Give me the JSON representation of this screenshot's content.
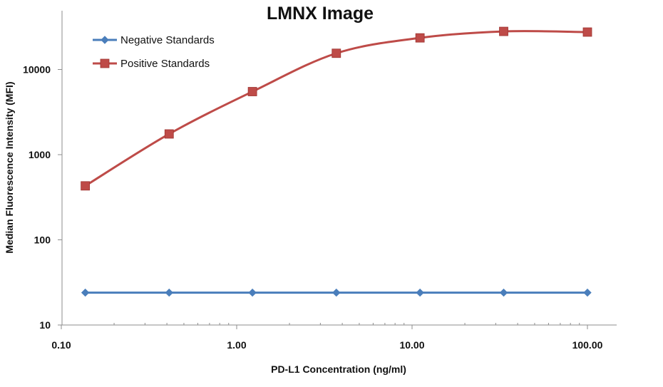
{
  "chart_data": {
    "type": "line",
    "title": "LMNX Image",
    "xlabel": "PD-L1 Concentration (ng/ml)",
    "ylabel": "Median Fluorescence Intensity (MFI)",
    "x_scale": "log",
    "y_scale": "log",
    "xlim": [
      0.1,
      100
    ],
    "ylim": [
      10,
      50000
    ],
    "x_ticks": [
      0.1,
      1,
      10,
      100
    ],
    "x_tick_labels": [
      "0.10",
      "1.00",
      "10.00",
      "100.00"
    ],
    "y_ticks": [
      10,
      100,
      1000,
      10000
    ],
    "y_tick_labels": [
      "10",
      "100",
      "1000",
      "10000"
    ],
    "grid": false,
    "legend_position": "top-left",
    "x": [
      0.137,
      0.412,
      1.23,
      3.7,
      11.1,
      33.3,
      100
    ],
    "series": [
      {
        "name": "Negative Standards",
        "color": "#4a7ebb",
        "marker": "diamond",
        "values": [
          24,
          24,
          24,
          24,
          24,
          24,
          24
        ]
      },
      {
        "name": "Positive Standards",
        "color": "#be4b48",
        "marker": "square",
        "values": [
          430,
          1750,
          5500,
          15500,
          23500,
          28000,
          27500
        ]
      }
    ]
  }
}
